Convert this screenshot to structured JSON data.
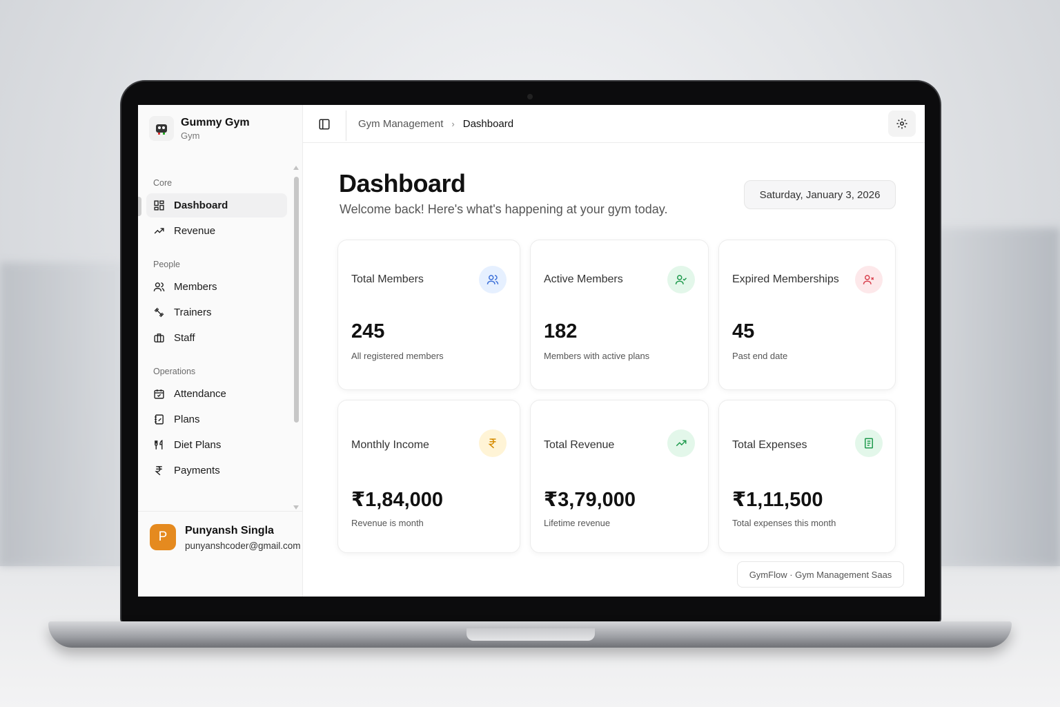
{
  "brand": {
    "name": "Gummy Gym",
    "sub": "Gym"
  },
  "sidebar": {
    "groups": [
      {
        "title": "Core",
        "items": [
          {
            "label": "Dashboard",
            "icon": "dashboard-icon"
          },
          {
            "label": "Revenue",
            "icon": "trending-up-icon"
          }
        ]
      },
      {
        "title": "People",
        "items": [
          {
            "label": "Members",
            "icon": "users-icon"
          },
          {
            "label": "Trainers",
            "icon": "dumbbell-icon"
          },
          {
            "label": "Staff",
            "icon": "briefcase-icon"
          }
        ]
      },
      {
        "title": "Operations",
        "items": [
          {
            "label": "Attendance",
            "icon": "calendar-check-icon"
          },
          {
            "label": "Plans",
            "icon": "notebook-icon"
          },
          {
            "label": "Diet Plans",
            "icon": "utensils-icon"
          },
          {
            "label": "Payments",
            "icon": "rupee-icon"
          }
        ]
      }
    ]
  },
  "user": {
    "initial": "P",
    "name": "Punyansh Singla",
    "email": "punyanshcoder@gmail.com"
  },
  "header": {
    "breadcrumb_parent": "Gym Management",
    "breadcrumb_current": "Dashboard"
  },
  "page": {
    "title": "Dashboard",
    "subtitle": "Welcome back! Here's what's happening at your gym today.",
    "date": "Saturday, January 3, 2026"
  },
  "cards": [
    {
      "label": "Total Members",
      "value": "245",
      "desc": "All registered members",
      "icon": "users-icon",
      "icon_bg": "#e6f0ff",
      "icon_color": "#3b6fd8"
    },
    {
      "label": "Active Members",
      "value": "182",
      "desc": "Members with active plans",
      "icon": "user-check-icon",
      "icon_bg": "#e3f7ea",
      "icon_color": "#1f9a4d"
    },
    {
      "label": "Expired Memberships",
      "value": "45",
      "desc": "Past end date",
      "icon": "user-x-icon",
      "icon_bg": "#fde8ea",
      "icon_color": "#d9414e"
    },
    {
      "label": "Monthly Income",
      "value": "₹1,84,000",
      "desc": "Revenue is month",
      "icon": "rupee-icon",
      "icon_bg": "#fff4d6",
      "icon_color": "#d68b00"
    },
    {
      "label": "Total Revenue",
      "value": "₹3,79,000",
      "desc": "Lifetime revenue",
      "icon": "trending-up-icon",
      "icon_bg": "#e3f7ea",
      "icon_color": "#1f9a4d"
    },
    {
      "label": "Total Expenses",
      "value": "₹1,11,500",
      "desc": "Total expenses this month",
      "icon": "receipt-icon",
      "icon_bg": "#e3f7ea",
      "icon_color": "#1f9a4d"
    }
  ],
  "footer": {
    "text": "GymFlow · Gym Management Saas"
  }
}
